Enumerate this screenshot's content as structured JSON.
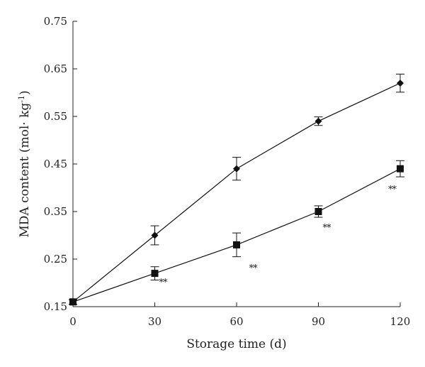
{
  "chart_data": {
    "type": "line",
    "xlabel": "Storage time (d)",
    "ylabel_main": "MDA content (mol· kg",
    "ylabel_sup": "-1",
    "ylabel_close": ")",
    "xlim": [
      0,
      120
    ],
    "ylim": [
      0.15,
      0.75
    ],
    "x_ticks": [
      0,
      30,
      60,
      90,
      120
    ],
    "x_tick_labels": [
      "0",
      "30",
      "60",
      "90",
      "120"
    ],
    "y_ticks": [
      0.15,
      0.25,
      0.35,
      0.45,
      0.55,
      0.65,
      0.75
    ],
    "y_tick_labels": [
      "0.15",
      "0.25",
      "0.35",
      "0.45",
      "0.55",
      "0.65",
      "0.75"
    ],
    "grid": false,
    "series": [
      {
        "marker": "diamond",
        "x": [
          0,
          30,
          60,
          90,
          120
        ],
        "y": [
          0.16,
          0.3,
          0.44,
          0.54,
          0.62
        ],
        "error": [
          0.005,
          0.02,
          0.024,
          0.009,
          0.019
        ]
      },
      {
        "marker": "square",
        "x": [
          0,
          30,
          60,
          90,
          120
        ],
        "y": [
          0.16,
          0.22,
          0.28,
          0.35,
          0.44
        ],
        "error": [
          0.005,
          0.014,
          0.025,
          0.012,
          0.017
        ]
      }
    ],
    "annotations": [
      {
        "text": "**",
        "x": 33,
        "y": 0.195
      },
      {
        "text": "**",
        "x": 66,
        "y": 0.225
      },
      {
        "text": "**",
        "x": 93,
        "y": 0.31
      },
      {
        "text": "**",
        "x": 117,
        "y": 0.39
      }
    ]
  }
}
